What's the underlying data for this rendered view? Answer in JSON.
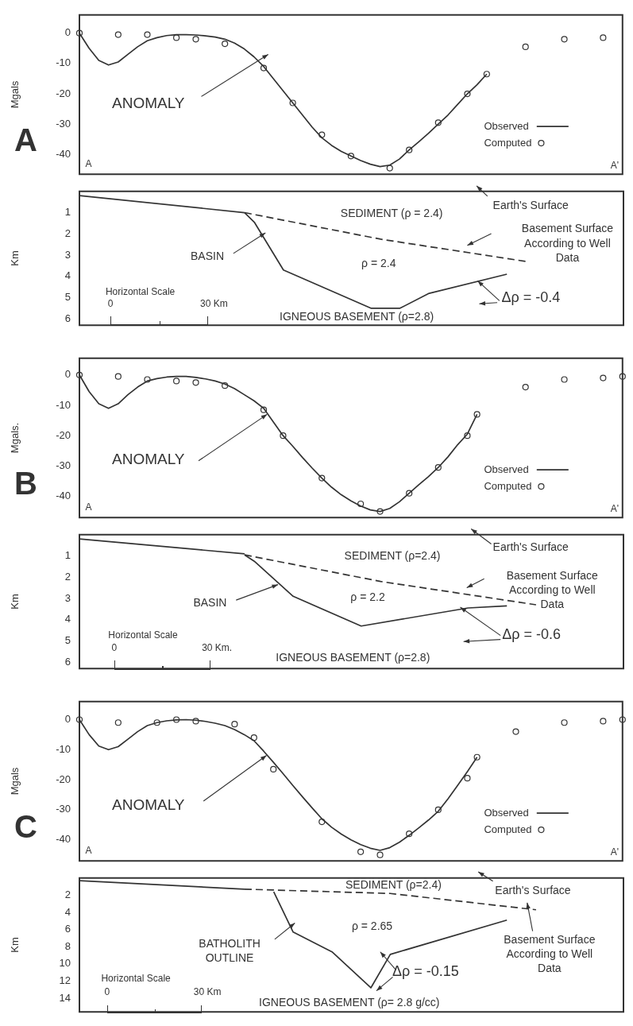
{
  "chart_data": [
    {
      "type": "line",
      "title": "A",
      "ylabel": "Mgals",
      "categories": [
        null,
        null,
        null,
        null,
        null,
        null,
        null,
        null,
        null,
        null,
        null,
        null,
        null,
        null,
        null,
        null,
        null,
        null,
        null,
        null,
        null,
        null,
        null,
        null,
        null,
        null,
        null,
        null,
        null,
        null,
        null,
        null,
        null,
        null,
        null,
        null,
        null,
        null,
        null,
        null,
        null,
        null,
        null,
        null,
        null,
        null,
        null,
        null,
        null,
        null,
        null,
        null,
        null,
        null,
        null,
        null,
        null
      ],
      "ylim": [
        -46.5,
        6
      ],
      "yticks": [
        0,
        -10,
        -20,
        -30,
        -40
      ],
      "tick_labels": "y",
      "legend": "bottom right",
      "annotations": [
        "ANOMALY",
        "A",
        "A'"
      ],
      "series": [
        {
          "name": "Observed",
          "type": "line",
          "marker": "none",
          "color": "#333333",
          "values": [
            0,
            -5,
            -9,
            -10.5,
            -9.5,
            -7,
            -4.5,
            -2.5,
            -1.5,
            -0.8,
            -0.5,
            -0.5,
            -0.6,
            -0.9,
            -1.3,
            -2,
            -3.3,
            -5.2,
            -7.8,
            -11,
            -15,
            -19,
            -23,
            -27,
            -31,
            -34.5,
            -37,
            -39,
            -40.5,
            -42,
            -43.2,
            -44,
            -43.5,
            -41.5,
            -38.5,
            -35.8,
            -33,
            -30,
            -27,
            -23.5,
            -20,
            -17,
            -13.5,
            null,
            null,
            null,
            null,
            null,
            null,
            null,
            null,
            null,
            null,
            null,
            null,
            null,
            null
          ]
        },
        {
          "name": "Computed",
          "type": "scatter",
          "marker": "circle",
          "color": "#333333",
          "values": [
            0,
            null,
            null,
            null,
            -0.5,
            null,
            null,
            -0.5,
            null,
            null,
            -1.5,
            null,
            -2,
            null,
            null,
            -3.5,
            null,
            null,
            null,
            -11.5,
            null,
            null,
            -23,
            null,
            null,
            -33.5,
            null,
            null,
            -40.5,
            null,
            null,
            null,
            -44.5,
            null,
            -38.5,
            null,
            null,
            -29.5,
            null,
            null,
            -20,
            null,
            -13.5,
            null,
            null,
            null,
            -4.5,
            null,
            null,
            null,
            -2,
            null,
            null,
            null,
            -1.5,
            null,
            null
          ]
        }
      ]
    },
    {
      "type": "line",
      "ylabel": "Km",
      "categories": [
        null,
        null,
        null,
        null,
        null,
        null,
        null,
        null,
        null,
        null,
        null,
        null,
        null,
        null,
        null,
        null,
        null,
        null,
        null,
        null,
        null,
        null,
        null,
        null,
        null,
        null,
        null,
        null,
        null,
        null,
        null,
        null,
        null,
        null,
        null,
        null,
        null,
        null,
        null,
        null,
        null,
        null,
        null,
        null,
        null,
        null,
        null,
        null,
        null,
        null,
        null,
        null,
        null,
        null,
        null,
        null,
        null
      ],
      "ylim": [
        6.3,
        0
      ],
      "yticks": [
        1,
        2,
        3,
        4,
        5,
        6
      ],
      "tick_labels": "y",
      "annotations": [
        "Earth's Surface",
        "SEDIMENT (ρ = 2.4)",
        "Basement Surface According to Well Data",
        "BASIN",
        "ρ = 2.4",
        "Δρ = -0.4",
        "Horizontal Scale",
        "0",
        "30 Km",
        "IGNEOUS BASEMENT (ρ=2.8)"
      ],
      "series": [
        {
          "type": "line",
          "color": "#333333",
          "line_style": "solid",
          "values": [
            0.2,
            null,
            null,
            null,
            null,
            null,
            null,
            null,
            null,
            null,
            null,
            null,
            null,
            null,
            null,
            null,
            null,
            1,
            null,
            null,
            null,
            null,
            null,
            null,
            null,
            null,
            null,
            null,
            null,
            null,
            null,
            null,
            null,
            null,
            null,
            null,
            null,
            null,
            null,
            null,
            null,
            null,
            null,
            null,
            null,
            null,
            null,
            null,
            null,
            null,
            null,
            null,
            null,
            null,
            null,
            null,
            null
          ]
        },
        {
          "type": "line",
          "color": "#333333",
          "line_style": "solid",
          "values": [
            null,
            null,
            null,
            null,
            null,
            null,
            null,
            null,
            null,
            null,
            null,
            null,
            null,
            null,
            null,
            null,
            null,
            1,
            1.45,
            null,
            null,
            3.7,
            null,
            null,
            null,
            null,
            null,
            null,
            null,
            null,
            5.5,
            null,
            null,
            5.5,
            null,
            null,
            4.8,
            null,
            null,
            null,
            null,
            null,
            null,
            null,
            3.9,
            null,
            null,
            null,
            null,
            null,
            null,
            null,
            null,
            null,
            null,
            null,
            null
          ]
        },
        {
          "type": "line",
          "color": "#333333",
          "line_style": "dashed",
          "values": [
            null,
            null,
            null,
            null,
            null,
            null,
            null,
            null,
            null,
            null,
            null,
            null,
            null,
            null,
            null,
            null,
            null,
            1,
            null,
            null,
            null,
            null,
            null,
            null,
            null,
            null,
            null,
            null,
            null,
            null,
            null,
            2.25,
            null,
            null,
            null,
            null,
            null,
            null,
            null,
            null,
            null,
            null,
            null,
            null,
            null,
            null,
            3.3,
            null,
            null,
            null,
            null,
            null,
            null,
            null,
            null,
            null,
            null
          ]
        }
      ]
    },
    {
      "type": "line",
      "title": "B",
      "ylabel": "Mgals.",
      "categories": [
        null,
        null,
        null,
        null,
        null,
        null,
        null,
        null,
        null,
        null,
        null,
        null,
        null,
        null,
        null,
        null,
        null,
        null,
        null,
        null,
        null,
        null,
        null,
        null,
        null,
        null,
        null,
        null,
        null,
        null,
        null,
        null,
        null,
        null,
        null,
        null,
        null,
        null,
        null,
        null,
        null,
        null,
        null,
        null,
        null,
        null,
        null,
        null,
        null,
        null,
        null,
        null,
        null,
        null,
        null,
        null,
        null
      ],
      "ylim": [
        -47,
        5.5
      ],
      "yticks": [
        0,
        -10,
        -20,
        -30,
        -40
      ],
      "tick_labels": "y",
      "legend": "bottom right",
      "annotations": [
        "ANOMALY",
        "A",
        "A'"
      ],
      "series": [
        {
          "name": "Observed",
          "type": "line",
          "marker": "none",
          "color": "#333333",
          "values": [
            0,
            -5.5,
            -9.5,
            -11,
            -9.5,
            -6.5,
            -4,
            -2,
            -1.2,
            -0.7,
            -0.5,
            -0.5,
            -0.8,
            -1.3,
            -2,
            -3,
            -4.5,
            -6.5,
            -8.5,
            -11,
            -15.5,
            -20,
            -23.5,
            -27.2,
            -30.7,
            -34,
            -37,
            -39.5,
            -41.5,
            -43.2,
            -44.5,
            -45,
            -44,
            -41.8,
            -39,
            -36.2,
            -33.5,
            -30.5,
            -27,
            -23,
            -19.5,
            -13,
            null,
            null,
            null,
            null,
            null,
            null,
            null,
            null,
            null,
            null,
            null,
            null,
            null,
            null,
            null
          ]
        },
        {
          "name": "Computed",
          "type": "scatter",
          "marker": "circle",
          "color": "#333333",
          "values": [
            0,
            null,
            null,
            null,
            -0.5,
            null,
            null,
            -1.5,
            null,
            null,
            -2,
            null,
            -2.5,
            null,
            null,
            -3.5,
            null,
            null,
            null,
            -11.5,
            null,
            -20,
            null,
            null,
            null,
            -34,
            null,
            null,
            null,
            -42.5,
            null,
            -45,
            null,
            null,
            -39,
            null,
            null,
            -30.5,
            null,
            null,
            -20,
            -13,
            null,
            null,
            null,
            null,
            -4,
            null,
            null,
            null,
            -1.5,
            null,
            null,
            null,
            -1,
            null,
            -0.5
          ]
        }
      ]
    },
    {
      "type": "line",
      "ylabel": "Km",
      "categories": [
        null,
        null,
        null,
        null,
        null,
        null,
        null,
        null,
        null,
        null,
        null,
        null,
        null,
        null,
        null,
        null,
        null,
        null,
        null,
        null,
        null,
        null,
        null,
        null,
        null,
        null,
        null,
        null,
        null,
        null,
        null,
        null,
        null,
        null,
        null,
        null,
        null,
        null,
        null,
        null,
        null,
        null,
        null,
        null,
        null,
        null,
        null,
        null,
        null,
        null,
        null,
        null,
        null,
        null,
        null,
        null,
        null
      ],
      "ylim": [
        6.3,
        0
      ],
      "yticks": [
        1,
        2,
        3,
        4,
        5,
        6
      ],
      "tick_labels": "y",
      "annotations": [
        "Earth's Surface",
        "SEDIMENT (ρ=2.4)",
        "Basement Surface According to Well Data",
        "BASIN",
        "ρ = 2.2",
        "Δρ = -0.6",
        "Horizontal Scale",
        "0",
        "30 Km.",
        "IGNEOUS BASEMENT (ρ=2.8)"
      ],
      "series": [
        {
          "type": "line",
          "color": "#333333",
          "line_style": "solid",
          "values": [
            0.2,
            null,
            null,
            null,
            null,
            null,
            null,
            null,
            null,
            null,
            null,
            null,
            null,
            null,
            null,
            null,
            null,
            0.9,
            null,
            null,
            null,
            null,
            null,
            null,
            null,
            null,
            null,
            null,
            null,
            null,
            null,
            null,
            null,
            null,
            null,
            null,
            null,
            null,
            null,
            null,
            null,
            null,
            null,
            null,
            null,
            null,
            null,
            null,
            null,
            null,
            null,
            null,
            null,
            null,
            null,
            null,
            null
          ]
        },
        {
          "type": "line",
          "color": "#333333",
          "line_style": "solid",
          "values": [
            null,
            null,
            null,
            null,
            null,
            null,
            null,
            null,
            null,
            null,
            null,
            null,
            null,
            null,
            null,
            null,
            null,
            0.95,
            1.25,
            null,
            null,
            null,
            2.9,
            null,
            null,
            null,
            null,
            null,
            null,
            4.3,
            null,
            null,
            null,
            null,
            null,
            null,
            null,
            null,
            null,
            null,
            3.45,
            null,
            null,
            null,
            3.35,
            null,
            null,
            null,
            null,
            null,
            null,
            null,
            null,
            null,
            null,
            null,
            null
          ]
        },
        {
          "type": "line",
          "color": "#333333",
          "line_style": "dashed",
          "values": [
            null,
            null,
            null,
            null,
            null,
            null,
            null,
            null,
            null,
            null,
            null,
            null,
            null,
            null,
            null,
            null,
            null,
            0.95,
            null,
            null,
            null,
            null,
            null,
            null,
            null,
            null,
            null,
            null,
            null,
            null,
            null,
            2.2,
            null,
            null,
            null,
            null,
            null,
            null,
            null,
            null,
            null,
            null,
            null,
            null,
            null,
            null,
            null,
            3.3,
            null,
            null,
            null,
            null,
            null,
            null,
            null,
            null,
            null
          ]
        }
      ]
    },
    {
      "type": "line",
      "title": "C",
      "ylabel": "Mgals",
      "categories": [
        null,
        null,
        null,
        null,
        null,
        null,
        null,
        null,
        null,
        null,
        null,
        null,
        null,
        null,
        null,
        null,
        null,
        null,
        null,
        null,
        null,
        null,
        null,
        null,
        null,
        null,
        null,
        null,
        null,
        null,
        null,
        null,
        null,
        null,
        null,
        null,
        null,
        null,
        null,
        null,
        null,
        null,
        null,
        null,
        null,
        null,
        null,
        null,
        null,
        null,
        null,
        null,
        null,
        null,
        null,
        null,
        null
      ],
      "ylim": [
        -47,
        6
      ],
      "yticks": [
        0,
        -10,
        -20,
        -30,
        -40
      ],
      "tick_labels": "y",
      "legend": "bottom right",
      "annotations": [
        "ANOMALY",
        "A",
        "A'"
      ],
      "series": [
        {
          "name": "Observed",
          "type": "line",
          "marker": "none",
          "color": "#333333",
          "values": [
            0,
            -5,
            -8.8,
            -10,
            -9,
            -6.5,
            -4,
            -2,
            -1,
            -0.4,
            -0.1,
            0,
            -0.2,
            -0.6,
            -1.2,
            -2,
            -3.3,
            -5,
            -7,
            -10.5,
            -14.2,
            -18,
            -21.9,
            -25.7,
            -29.4,
            -33,
            -35.8,
            -38.1,
            -40,
            -41.6,
            -42.8,
            -43.5,
            -42.6,
            -40.8,
            -38.5,
            -36,
            -33.4,
            -30.5,
            -26.4,
            -21.9,
            -17.3,
            -12.5,
            null,
            null,
            null,
            null,
            null,
            null,
            null,
            null,
            null,
            null,
            null,
            null,
            null,
            null,
            null
          ]
        },
        {
          "name": "Computed",
          "type": "scatter",
          "marker": "circle",
          "color": "#333333",
          "values": [
            0,
            null,
            null,
            null,
            -1,
            null,
            null,
            null,
            -1,
            null,
            0,
            null,
            -0.5,
            null,
            null,
            null,
            -1.5,
            null,
            -6,
            null,
            -16.5,
            null,
            null,
            null,
            null,
            -34,
            null,
            null,
            null,
            -44,
            null,
            -45,
            null,
            null,
            -38,
            null,
            null,
            -30,
            null,
            null,
            -19.5,
            -12.5,
            null,
            null,
            null,
            -4,
            null,
            null,
            null,
            null,
            -1,
            null,
            null,
            null,
            -0.5,
            null,
            0
          ]
        }
      ]
    },
    {
      "type": "line",
      "ylabel": "Km",
      "categories": [
        null,
        null,
        null,
        null,
        null,
        null,
        null,
        null,
        null,
        null,
        null,
        null,
        null,
        null,
        null,
        null,
        null,
        null,
        null,
        null,
        null,
        null,
        null,
        null,
        null,
        null,
        null,
        null,
        null,
        null,
        null,
        null,
        null,
        null,
        null,
        null,
        null,
        null,
        null,
        null,
        null,
        null,
        null,
        null,
        null,
        null,
        null,
        null,
        null,
        null,
        null,
        null,
        null,
        null,
        null,
        null,
        null
      ],
      "ylim": [
        15.6,
        0
      ],
      "yticks": [
        2,
        4,
        6,
        8,
        10,
        12,
        14
      ],
      "tick_labels": "y",
      "annotations": [
        "SEDIMENT (ρ=2.4)",
        "Earth's Surface",
        "ρ = 2.65",
        "BATHOLITH OUTLINE",
        "Δρ = -0.15",
        "Basement Surface According to Well Data",
        "Horizontal Scale",
        "0",
        "30 Km",
        "IGNEOUS BASEMENT (ρ= 2.8 g/cc)"
      ],
      "series": [
        {
          "type": "line",
          "color": "#333333",
          "line_style": "solid",
          "values": [
            0.3,
            null,
            null,
            null,
            null,
            null,
            null,
            null,
            null,
            null,
            null,
            null,
            null,
            null,
            null,
            null,
            null,
            1.3,
            null,
            null,
            null,
            null,
            null,
            null,
            null,
            null,
            null,
            null,
            null,
            null,
            null,
            null,
            null,
            null,
            null,
            null,
            null,
            null,
            null,
            null,
            null,
            null,
            null,
            null,
            null,
            null,
            null,
            null,
            null,
            null,
            null,
            null,
            null,
            null,
            null,
            null,
            null
          ]
        },
        {
          "type": "line",
          "color": "#333333",
          "line_style": "solid",
          "values": [
            null,
            null,
            null,
            null,
            null,
            null,
            null,
            null,
            null,
            null,
            null,
            null,
            null,
            null,
            null,
            null,
            null,
            null,
            null,
            null,
            1.6,
            null,
            6.3,
            null,
            null,
            null,
            8.6,
            null,
            null,
            null,
            12.8,
            null,
            8.9,
            null,
            null,
            null,
            null,
            null,
            null,
            null,
            null,
            null,
            null,
            null,
            4.9,
            null,
            null,
            null,
            null,
            null,
            null,
            null,
            null,
            null,
            null,
            null,
            null
          ]
        },
        {
          "type": "line",
          "color": "#333333",
          "line_style": "dashed",
          "values": [
            null,
            null,
            null,
            null,
            null,
            null,
            null,
            null,
            null,
            null,
            null,
            null,
            null,
            null,
            null,
            null,
            null,
            1.3,
            null,
            null,
            null,
            null,
            null,
            null,
            null,
            null,
            null,
            null,
            null,
            null,
            null,
            null,
            1.8,
            null,
            null,
            null,
            null,
            null,
            null,
            null,
            null,
            null,
            null,
            null,
            null,
            null,
            null,
            3.7,
            null,
            null,
            null,
            null,
            null,
            null,
            null,
            null,
            null
          ]
        }
      ]
    }
  ]
}
